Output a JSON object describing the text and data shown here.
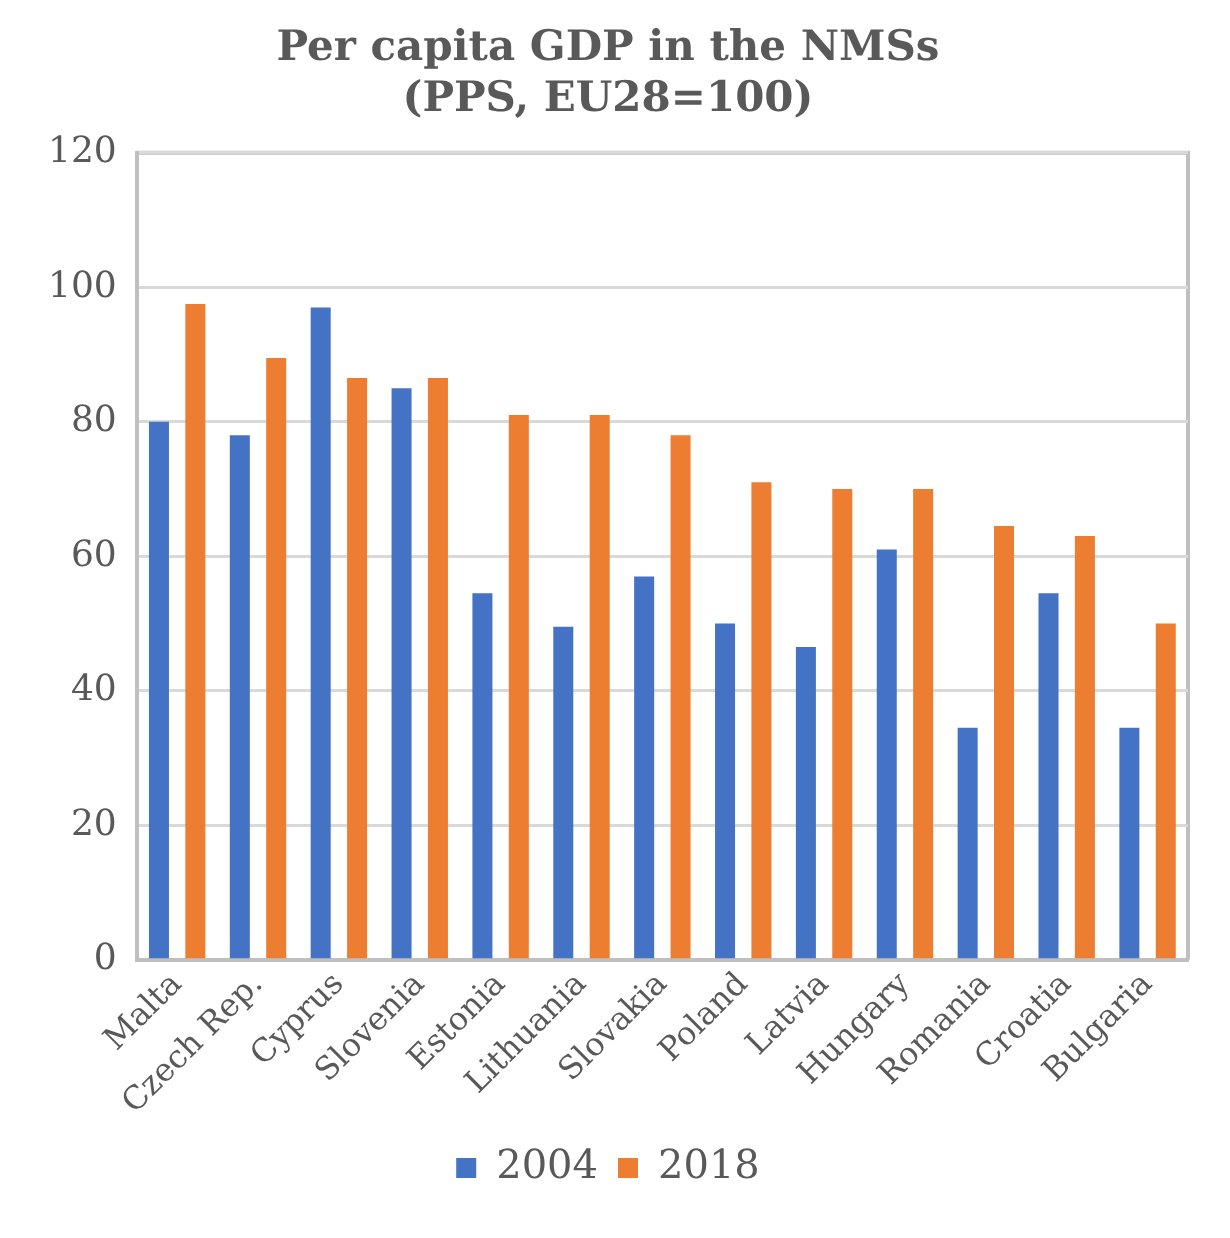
{
  "chart_data": {
    "type": "bar",
    "title": "Per capita GDP in the NMSs\n(PPS, EU28=100)",
    "categories": [
      "Malta",
      "Czech Rep.",
      "Cyprus",
      "Slovenia",
      "Estonia",
      "Lithuania",
      "Slovakia",
      "Poland",
      "Latvia",
      "Hungary",
      "Romania",
      "Croatia",
      "Bulgaria"
    ],
    "series": [
      {
        "name": "2004",
        "color": "#4472c4",
        "values": [
          80,
          78,
          97,
          85,
          54.5,
          49.5,
          57,
          50,
          46.5,
          61,
          34.5,
          54.5,
          34.5
        ]
      },
      {
        "name": "2018",
        "color": "#ed7d31",
        "values": [
          97.5,
          89.5,
          86.5,
          86.5,
          81,
          81,
          78,
          71,
          70,
          70,
          64.5,
          63,
          50
        ]
      }
    ],
    "ylim": [
      0,
      120
    ],
    "yticks": [
      0,
      20,
      40,
      60,
      80,
      100,
      120
    ],
    "grid": "y",
    "legend": "bottom"
  }
}
